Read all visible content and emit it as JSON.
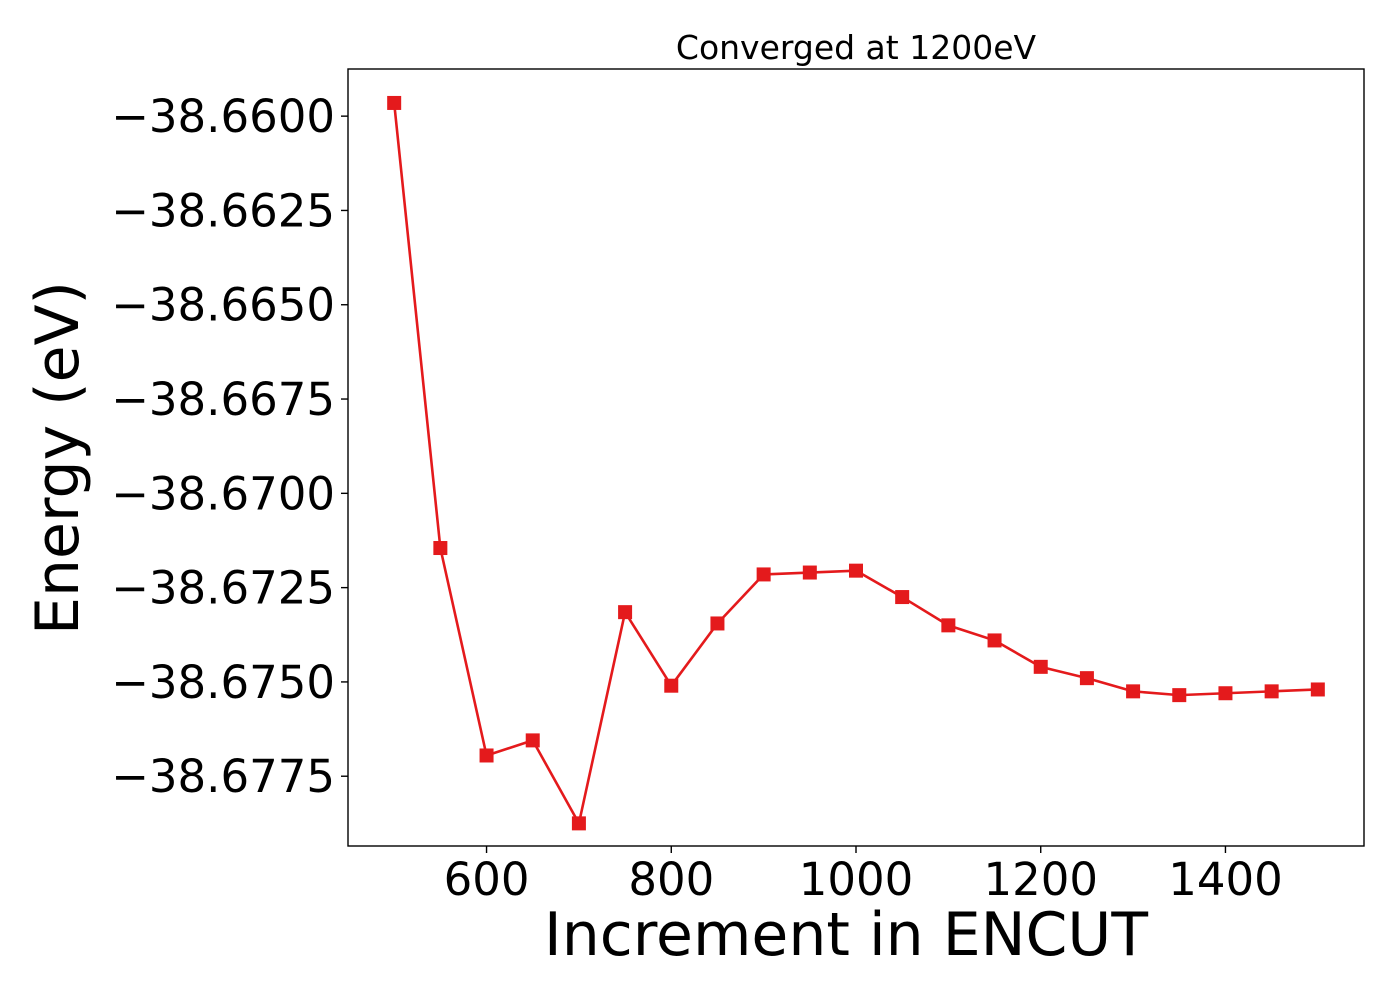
{
  "chart_data": {
    "type": "line",
    "title": "Converged at 1200eV",
    "xlabel": "Increment in ENCUT",
    "ylabel": "Energy (eV)",
    "xlim": [
      450,
      1550
    ],
    "ylim": [
      -38.67935,
      -38.65875
    ],
    "x_ticks": [
      600,
      800,
      1000,
      1200,
      1400
    ],
    "x_tick_labels": [
      "600",
      "800",
      "1000",
      "1200",
      "1400"
    ],
    "y_ticks": [
      -38.66,
      -38.6625,
      -38.665,
      -38.6675,
      -38.67,
      -38.6725,
      -38.675,
      -38.6775
    ],
    "y_tick_labels": [
      "−38.6600",
      "−38.6625",
      "−38.6650",
      "−38.6675",
      "−38.6700",
      "−38.6725",
      "−38.6750",
      "−38.6775"
    ],
    "grid": false,
    "series": [
      {
        "color": "#e41a1c",
        "marker": "square",
        "x": [
          500,
          550,
          600,
          650,
          700,
          750,
          800,
          850,
          900,
          950,
          1000,
          1050,
          1100,
          1150,
          1200,
          1250,
          1300,
          1350,
          1400,
          1450,
          1500
        ],
        "y": [
          -38.65965,
          -38.67145,
          -38.67695,
          -38.67655,
          -38.67875,
          -38.67315,
          -38.6751,
          -38.67345,
          -38.67215,
          -38.6721,
          -38.67205,
          -38.67275,
          -38.6735,
          -38.6739,
          -38.6746,
          -38.6749,
          -38.67525,
          -38.67535,
          -38.6753,
          -38.67525,
          -38.6752
        ]
      }
    ]
  }
}
